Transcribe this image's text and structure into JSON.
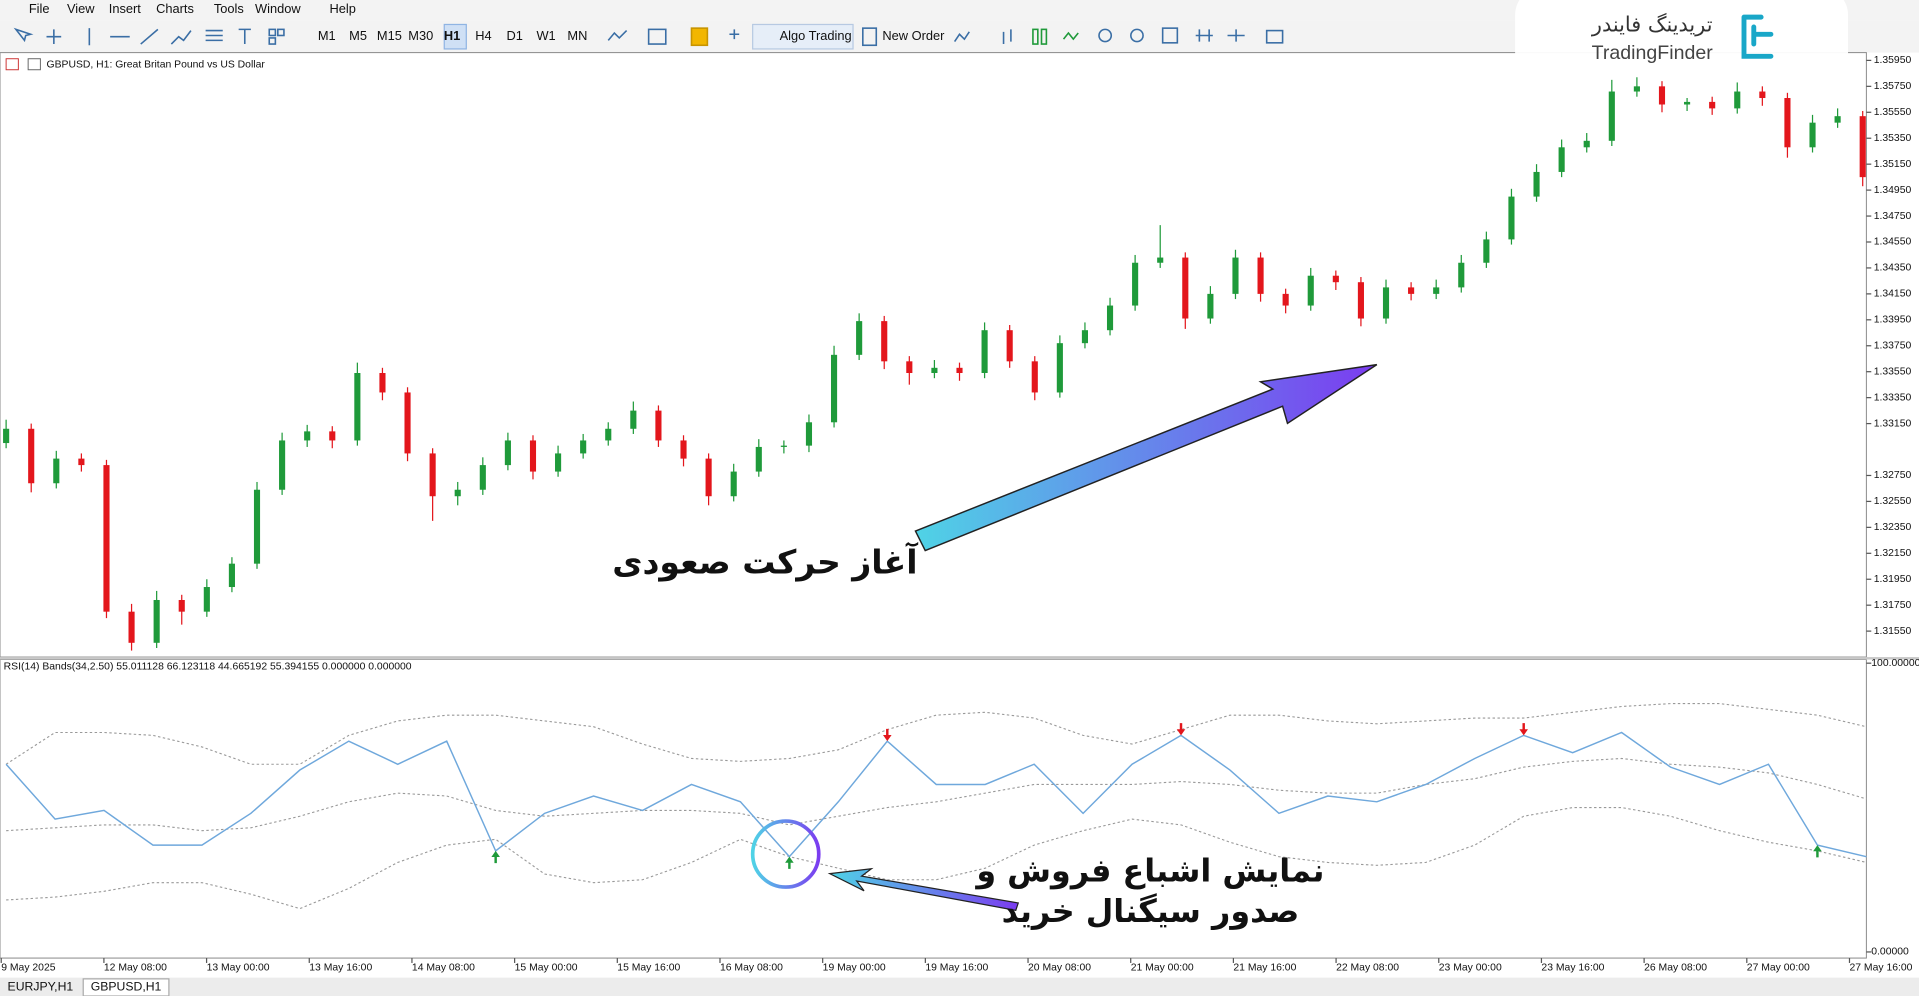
{
  "menu": [
    "File",
    "View",
    "Insert",
    "Charts",
    "Tools",
    "Window",
    "Help"
  ],
  "toolbar": {
    "timeframes": [
      "M1",
      "M5",
      "M15",
      "M30",
      "H1",
      "H4",
      "D1",
      "W1",
      "MN"
    ],
    "active_timeframe": 4,
    "algo": "Algo Trading",
    "order": "New Order"
  },
  "logo": {
    "fa": "تریدینگ فایندر",
    "en": "TradingFinder"
  },
  "tabs": {
    "items": [
      "EURJPY,H1",
      "GBPUSD,H1"
    ],
    "active": 1
  },
  "annotations": {
    "trend": "آغاز حرکت صعودی",
    "signal": [
      "نمایش اشباع فروش و",
      "صدور سیگنال خرید"
    ]
  },
  "chart_data": [
    {
      "type": "candlestick",
      "title": "GBPUSD, H1:  Great Britan Pound vs US Dollar",
      "up_color": "#1f9a3a",
      "down_color": "#e3161c",
      "ylim": [
        1.3135,
        1.3601
      ],
      "yticks": [
        {
          "value": 1.3595,
          "label": "1.35950"
        },
        {
          "value": 1.3575,
          "label": "1.35750"
        },
        {
          "value": 1.3555,
          "label": "1.35550"
        },
        {
          "value": 1.3535,
          "label": "1.35350"
        },
        {
          "value": 1.3515,
          "label": "1.35150"
        },
        {
          "value": 1.3495,
          "label": "1.34950"
        },
        {
          "value": 1.3475,
          "label": "1.34750"
        },
        {
          "value": 1.3455,
          "label": "1.34550"
        },
        {
          "value": 1.3435,
          "label": "1.34350"
        },
        {
          "value": 1.3415,
          "label": "1.34150"
        },
        {
          "value": 1.3395,
          "label": "1.33950"
        },
        {
          "value": 1.3375,
          "label": "1.33750"
        },
        {
          "value": 1.3355,
          "label": "1.33550"
        },
        {
          "value": 1.3335,
          "label": "1.33350"
        },
        {
          "value": 1.3315,
          "label": "1.33150"
        },
        {
          "value": 1.3275,
          "label": "1.32750"
        },
        {
          "value": 1.3255,
          "label": "1.32550"
        },
        {
          "value": 1.3235,
          "label": "1.32350"
        },
        {
          "value": 1.3215,
          "label": "1.32150"
        },
        {
          "value": 1.3195,
          "label": "1.31950"
        },
        {
          "value": 1.3175,
          "label": "1.31750"
        },
        {
          "value": 1.3155,
          "label": "1.31550"
        }
      ],
      "candles": [
        [
          1.33,
          1.3318,
          1.3296,
          1.3311
        ],
        [
          1.3311,
          1.3315,
          1.3262,
          1.3269
        ],
        [
          1.3269,
          1.3294,
          1.3265,
          1.3288
        ],
        [
          1.3288,
          1.3292,
          1.3278,
          1.3283
        ],
        [
          1.3283,
          1.3287,
          1.3165,
          1.317
        ],
        [
          1.317,
          1.3176,
          1.314,
          1.3146
        ],
        [
          1.3146,
          1.3186,
          1.3142,
          1.3179
        ],
        [
          1.3179,
          1.3183,
          1.316,
          1.317
        ],
        [
          1.317,
          1.3195,
          1.3166,
          1.3189
        ],
        [
          1.3189,
          1.3212,
          1.3185,
          1.3207
        ],
        [
          1.3207,
          1.327,
          1.3203,
          1.3264
        ],
        [
          1.3264,
          1.3308,
          1.326,
          1.3302
        ],
        [
          1.3302,
          1.3314,
          1.3297,
          1.3309
        ],
        [
          1.3309,
          1.3313,
          1.3296,
          1.3302
        ],
        [
          1.3302,
          1.3362,
          1.3298,
          1.3354
        ],
        [
          1.3354,
          1.3358,
          1.3333,
          1.3339
        ],
        [
          1.3339,
          1.3343,
          1.3286,
          1.3292
        ],
        [
          1.3292,
          1.3296,
          1.324,
          1.3259
        ],
        [
          1.3259,
          1.327,
          1.3252,
          1.3264
        ],
        [
          1.3264,
          1.3289,
          1.326,
          1.3283
        ],
        [
          1.3283,
          1.3308,
          1.3279,
          1.3302
        ],
        [
          1.3302,
          1.3306,
          1.3272,
          1.3278
        ],
        [
          1.3278,
          1.3298,
          1.3274,
          1.3292
        ],
        [
          1.3292,
          1.3307,
          1.3288,
          1.3302
        ],
        [
          1.3302,
          1.3316,
          1.3298,
          1.3311
        ],
        [
          1.3311,
          1.3332,
          1.3307,
          1.3325
        ],
        [
          1.3325,
          1.3329,
          1.3297,
          1.3302
        ],
        [
          1.3302,
          1.3306,
          1.3282,
          1.3288
        ],
        [
          1.3288,
          1.3292,
          1.3252,
          1.3259
        ],
        [
          1.3259,
          1.3284,
          1.3255,
          1.3278
        ],
        [
          1.3278,
          1.3303,
          1.3274,
          1.3297
        ],
        [
          1.3297,
          1.3302,
          1.3292,
          1.3298
        ],
        [
          1.3298,
          1.3322,
          1.3293,
          1.3316
        ],
        [
          1.3316,
          1.3375,
          1.3312,
          1.3368
        ],
        [
          1.3368,
          1.34,
          1.3364,
          1.3394
        ],
        [
          1.3394,
          1.3398,
          1.3357,
          1.3363
        ],
        [
          1.3363,
          1.3367,
          1.3345,
          1.3354
        ],
        [
          1.3354,
          1.3364,
          1.335,
          1.3358
        ],
        [
          1.3358,
          1.3362,
          1.3348,
          1.3354
        ],
        [
          1.3354,
          1.3393,
          1.335,
          1.3387
        ],
        [
          1.3387,
          1.3391,
          1.3358,
          1.3363
        ],
        [
          1.3363,
          1.3367,
          1.3333,
          1.3339
        ],
        [
          1.3339,
          1.3383,
          1.3335,
          1.3377
        ],
        [
          1.3377,
          1.3393,
          1.3373,
          1.3387
        ],
        [
          1.3387,
          1.3412,
          1.3383,
          1.3406
        ],
        [
          1.3406,
          1.3445,
          1.3402,
          1.3439
        ],
        [
          1.3439,
          1.3468,
          1.3435,
          1.3443
        ],
        [
          1.3443,
          1.3447,
          1.3388,
          1.3396
        ],
        [
          1.3396,
          1.3421,
          1.3392,
          1.3415
        ],
        [
          1.3415,
          1.3449,
          1.3411,
          1.3443
        ],
        [
          1.3443,
          1.3447,
          1.3409,
          1.3415
        ],
        [
          1.3415,
          1.3419,
          1.34,
          1.3406
        ],
        [
          1.3406,
          1.3435,
          1.3402,
          1.3429
        ],
        [
          1.3429,
          1.3433,
          1.3418,
          1.3424
        ],
        [
          1.3424,
          1.3428,
          1.339,
          1.3396
        ],
        [
          1.3396,
          1.3426,
          1.3392,
          1.342
        ],
        [
          1.342,
          1.3424,
          1.341,
          1.3415
        ],
        [
          1.3415,
          1.3426,
          1.3411,
          1.342
        ],
        [
          1.342,
          1.3445,
          1.3416,
          1.3439
        ],
        [
          1.3439,
          1.3463,
          1.3435,
          1.3457
        ],
        [
          1.3457,
          1.3496,
          1.3453,
          1.349
        ],
        [
          1.349,
          1.3515,
          1.3486,
          1.3509
        ],
        [
          1.3509,
          1.3534,
          1.3505,
          1.3528
        ],
        [
          1.3528,
          1.3539,
          1.3524,
          1.3533
        ],
        [
          1.3533,
          1.358,
          1.3529,
          1.3571
        ],
        [
          1.3571,
          1.3582,
          1.3567,
          1.3575
        ],
        [
          1.3575,
          1.3579,
          1.3555,
          1.3561
        ],
        [
          1.3561,
          1.3566,
          1.3556,
          1.3563
        ],
        [
          1.3563,
          1.3567,
          1.3553,
          1.3558
        ],
        [
          1.3558,
          1.3578,
          1.3554,
          1.3571
        ],
        [
          1.3571,
          1.3575,
          1.356,
          1.3566
        ],
        [
          1.3566,
          1.357,
          1.352,
          1.3528
        ],
        [
          1.3528,
          1.3553,
          1.3524,
          1.3547
        ],
        [
          1.3547,
          1.3558,
          1.3543,
          1.3552
        ],
        [
          1.3552,
          1.3556,
          1.3498,
          1.3505
        ]
      ]
    },
    {
      "type": "line",
      "title": "RSI(14) Bands(34,2.50) 55.011128 66.123118 44.665192 55.394155 0.000000 0.000000",
      "ylim": [
        0,
        100
      ],
      "yticks": [
        {
          "value": 100,
          "label": "100.00000"
        },
        {
          "value": 0,
          "label": "0.00000"
        }
      ],
      "time_labels": [
        "9 May 2025",
        "12 May 08:00",
        "13 May 00:00",
        "13 May 16:00",
        "14 May 08:00",
        "15 May 00:00",
        "15 May 16:00",
        "16 May 08:00",
        "19 May 00:00",
        "19 May 16:00",
        "20 May 08:00",
        "21 May 00:00",
        "21 May 16:00",
        "22 May 08:00",
        "23 May 00:00",
        "23 May 16:00",
        "26 May 08:00",
        "27 May 00:00",
        "27 May 16:00"
      ],
      "series": [
        {
          "color": "#999999",
          "style": "dotted",
          "values": [
            65,
            76,
            76,
            75,
            71,
            65,
            65,
            75,
            80,
            82,
            82,
            80,
            78,
            72,
            67,
            66,
            67,
            70,
            77,
            82,
            83,
            81,
            75,
            72,
            77,
            82,
            82,
            80,
            79,
            80,
            81,
            81,
            83,
            85,
            86,
            86,
            84,
            82,
            78
          ]
        },
        {
          "color": "#999999",
          "style": "dotted",
          "values": [
            42,
            43,
            44,
            44,
            42,
            43,
            47,
            52,
            55,
            54,
            49,
            47,
            48,
            49,
            49,
            48,
            44,
            47,
            50,
            52,
            55,
            58,
            58,
            58,
            59,
            58,
            56,
            55,
            55,
            58,
            60,
            64,
            66,
            67,
            65,
            64,
            62,
            58,
            53
          ]
        },
        {
          "color": "#999999",
          "style": "dotted",
          "values": [
            18,
            19,
            21,
            24,
            24,
            20,
            15,
            22,
            31,
            37,
            39,
            27,
            24,
            25,
            31,
            39,
            33,
            29,
            25,
            25,
            29,
            37,
            42,
            46,
            44,
            38,
            33,
            31,
            30,
            31,
            37,
            47,
            50,
            50,
            47,
            42,
            38,
            35,
            31
          ]
        },
        {
          "color": "#6fa8dc",
          "style": "solid",
          "values": [
            65,
            46,
            49,
            37,
            37,
            48,
            63,
            73,
            65,
            73,
            35,
            48,
            54,
            49,
            58,
            52,
            33,
            52,
            73,
            58,
            58,
            65,
            48,
            65,
            75,
            63,
            48,
            54,
            52,
            58,
            67,
            75,
            69,
            76,
            64,
            58,
            65,
            37,
            33
          ]
        },
        {
          "color": "#e3161c",
          "marker": "arrow-down",
          "values": [
            null,
            null,
            null,
            null,
            null,
            null,
            null,
            null,
            null,
            null,
            null,
            null,
            null,
            null,
            null,
            null,
            null,
            null,
            73,
            null,
            null,
            null,
            null,
            null,
            75,
            null,
            null,
            null,
            null,
            null,
            null,
            75,
            null,
            null,
            null,
            null,
            null,
            null,
            null
          ]
        },
        {
          "color": "#1f9a3a",
          "marker": "arrow-up",
          "values": [
            null,
            null,
            null,
            null,
            null,
            null,
            null,
            null,
            null,
            null,
            35,
            null,
            null,
            null,
            null,
            null,
            33,
            null,
            null,
            null,
            null,
            null,
            null,
            null,
            null,
            null,
            null,
            null,
            null,
            null,
            null,
            null,
            null,
            null,
            null,
            null,
            null,
            37,
            null
          ]
        }
      ]
    }
  ]
}
